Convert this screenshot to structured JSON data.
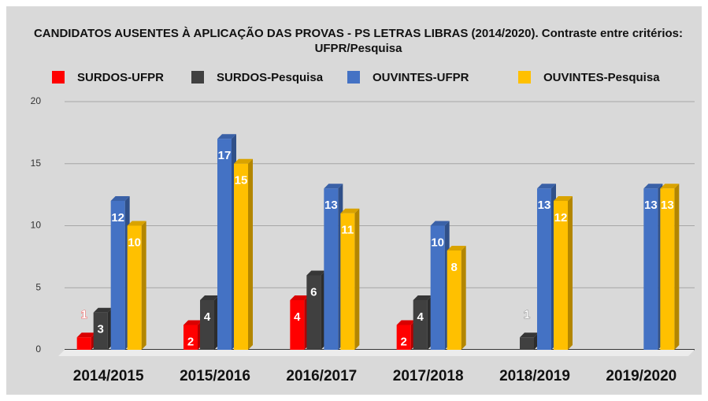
{
  "chart_data": {
    "type": "bar3d",
    "title": "CANDIDATOS AUSENTES À APLICAÇÃO DAS PROVAS - PS LETRAS LIBRAS (2014/2020). Contraste entre critérios: UFPR/Pesquisa",
    "categories": [
      "2014/2015",
      "2015/2016",
      "2016/2017",
      "2017/2018",
      "2018/2019",
      "2019/2020"
    ],
    "series": [
      {
        "name": "SURDOS-UFPR",
        "color": "#ff0000",
        "values": [
          1,
          2,
          4,
          2,
          null,
          null
        ]
      },
      {
        "name": "SURDOS-Pesquisa",
        "color": "#404040",
        "values": [
          3,
          4,
          6,
          4,
          1,
          null
        ]
      },
      {
        "name": "OUVINTES-UFPR",
        "color": "#4472c4",
        "values": [
          12,
          17,
          13,
          10,
          13,
          13
        ]
      },
      {
        "name": "OUVINTES-Pesquisa",
        "color": "#ffc000",
        "values": [
          10,
          15,
          11,
          8,
          12,
          13
        ]
      }
    ],
    "ylim": [
      0,
      20
    ],
    "yticks": [
      0,
      5,
      10,
      15,
      20
    ],
    "grid": true,
    "legend": "top",
    "data_labels": true
  }
}
